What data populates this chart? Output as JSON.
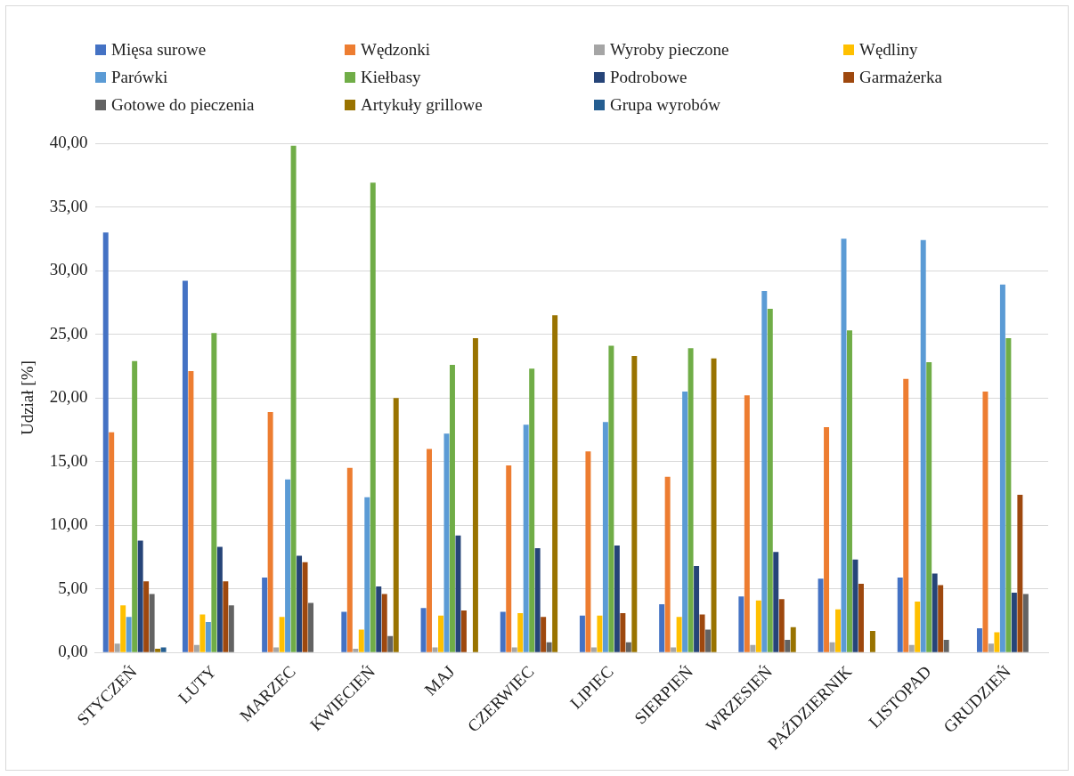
{
  "chart_data": {
    "type": "bar",
    "ylabel": "Udział [%]",
    "categories": [
      "STYCZEŃ",
      "LUTY",
      "MARZEC",
      "KWIECIEŃ",
      "MAJ",
      "CZERWIEC",
      "LIPIEC",
      "SIERPIEŃ",
      "WRZESIEŃ",
      "PAŹDZIERNIK",
      "LISTOPAD",
      "GRUDZIEŃ"
    ],
    "ylim": [
      0,
      40
    ],
    "yticks": [
      {
        "value": 0,
        "label": "0,00"
      },
      {
        "value": 5,
        "label": "5,00"
      },
      {
        "value": 10,
        "label": "10,00"
      },
      {
        "value": 15,
        "label": "15,00"
      },
      {
        "value": 20,
        "label": "20,00"
      },
      {
        "value": 25,
        "label": "25,00"
      },
      {
        "value": 30,
        "label": "30,00"
      },
      {
        "value": 35,
        "label": "35,00"
      },
      {
        "value": 40,
        "label": "40,00"
      }
    ],
    "grid": "y",
    "legend": "top",
    "series": [
      {
        "name": "Mięsa surowe",
        "color": "#4472c4",
        "values": [
          33.0,
          29.2,
          5.9,
          3.2,
          3.5,
          3.2,
          2.9,
          3.8,
          4.4,
          5.8,
          5.9,
          1.9
        ]
      },
      {
        "name": "Wędzonki",
        "color": "#ed7d31",
        "values": [
          17.3,
          22.1,
          18.9,
          14.5,
          16.0,
          14.7,
          15.8,
          13.8,
          20.2,
          17.7,
          21.5,
          20.5
        ]
      },
      {
        "name": "Wyroby pieczone",
        "color": "#a5a5a5",
        "values": [
          0.7,
          0.6,
          0.4,
          0.3,
          0.4,
          0.4,
          0.4,
          0.4,
          0.6,
          0.8,
          0.6,
          0.7
        ]
      },
      {
        "name": "Wędliny",
        "color": "#ffc000",
        "values": [
          3.7,
          3.0,
          2.8,
          1.8,
          2.9,
          3.1,
          2.9,
          2.8,
          4.1,
          3.4,
          4.0,
          1.6
        ]
      },
      {
        "name": "Parówki",
        "color": "#5b9bd5",
        "values": [
          2.8,
          2.4,
          13.6,
          12.2,
          17.2,
          17.9,
          18.1,
          20.5,
          28.4,
          32.5,
          32.4,
          28.9
        ]
      },
      {
        "name": "Kiełbasy",
        "color": "#70ad47",
        "values": [
          22.9,
          25.1,
          39.8,
          36.9,
          22.6,
          22.3,
          24.1,
          23.9,
          27.0,
          25.3,
          22.8,
          24.7
        ]
      },
      {
        "name": "Podrobowe",
        "color": "#264478",
        "values": [
          8.8,
          8.3,
          7.6,
          5.2,
          9.2,
          8.2,
          8.4,
          6.8,
          7.9,
          7.3,
          6.2,
          4.7
        ]
      },
      {
        "name": "Garmażerka",
        "color": "#9e480e",
        "values": [
          5.6,
          5.6,
          7.1,
          4.6,
          3.3,
          2.8,
          3.1,
          3.0,
          4.2,
          5.4,
          5.3,
          12.4
        ]
      },
      {
        "name": "Gotowe do pieczenia",
        "color": "#636363",
        "values": [
          4.6,
          3.7,
          3.9,
          1.3,
          null,
          0.8,
          0.8,
          1.8,
          1.0,
          null,
          1.0,
          4.6
        ]
      },
      {
        "name": "Artykuły grillowe",
        "color": "#997300",
        "values": [
          0.3,
          null,
          null,
          20.0,
          24.7,
          26.5,
          23.3,
          23.1,
          2.0,
          1.7,
          null,
          null
        ]
      },
      {
        "name": "Grupa wyrobów",
        "color": "#255e91",
        "values": [
          0.4,
          null,
          null,
          null,
          null,
          null,
          null,
          null,
          null,
          null,
          null,
          null
        ]
      }
    ]
  }
}
